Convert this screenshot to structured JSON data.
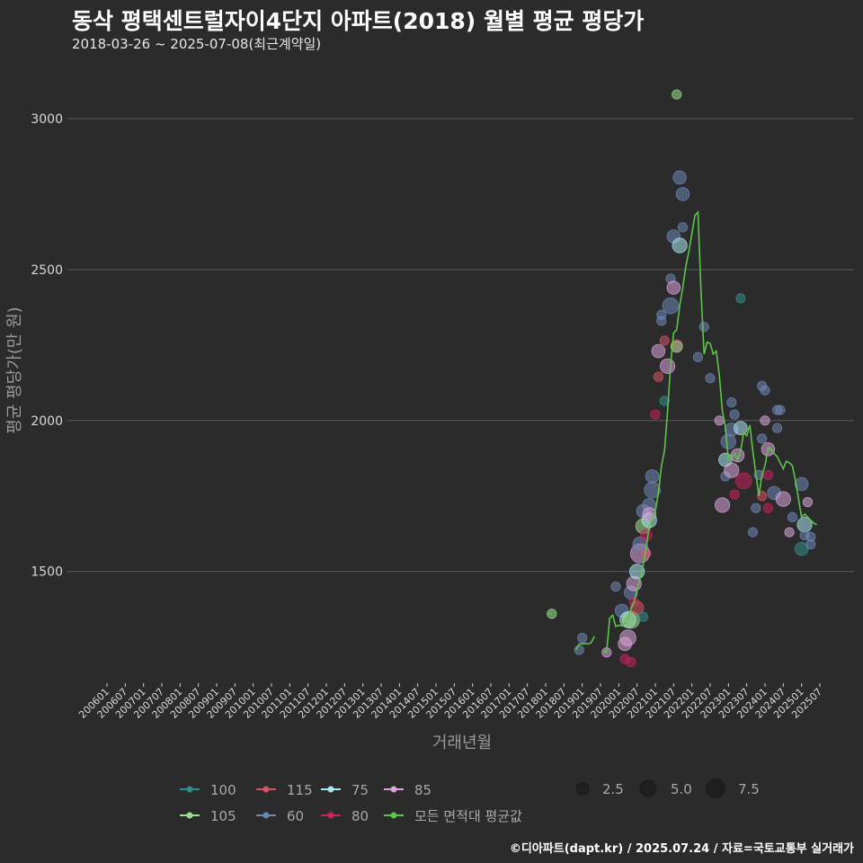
{
  "title": "동삭 평택센트럴자이4단지 아파트(2018) 월별 평균 평당가",
  "subtitle": "2018-03-26 ~ 2025-07-08(최근계약일)",
  "caption": "©디아파트(dapt.kr) / 2025.07.24 / 자료=국토교통부 실거래가",
  "colors": {
    "background": "#2b2b2b",
    "grid": "#5a5a5a",
    "line": "#5cc44a",
    "100": "#2f8f8a",
    "105": "#9be08f",
    "115": "#d4545f",
    "60": "#6f86b6",
    "75": "#a9e6ec",
    "80": "#c9215f",
    "85": "#dba4dc"
  },
  "chart_data": {
    "type": "scatter",
    "title": "동삭 평택센트럴자이4단지 아파트(2018) 월별 평균 평당가",
    "xlabel": "거래년월",
    "ylabel": "평균 평당가(만 원)",
    "x_ticks": [
      "200601",
      "200607",
      "200701",
      "200707",
      "200801",
      "200807",
      "200901",
      "200907",
      "201001",
      "201007",
      "201101",
      "201107",
      "201201",
      "201207",
      "201301",
      "201307",
      "201401",
      "201407",
      "201501",
      "201507",
      "201601",
      "201607",
      "201701",
      "201707",
      "201801",
      "201807",
      "201901",
      "201907",
      "202001",
      "202007",
      "202101",
      "202107",
      "202201",
      "202207",
      "202301",
      "202307",
      "202401",
      "202407",
      "202501",
      "202507"
    ],
    "y_ticks": [
      1500,
      2000,
      2500,
      3000
    ],
    "ylim": [
      1130,
      3110
    ],
    "grid": true,
    "legend": {
      "color_title": "",
      "color_items": [
        {
          "key": "100",
          "label": "100"
        },
        {
          "key": "115",
          "label": "115"
        },
        {
          "key": "75",
          "label": "75"
        },
        {
          "key": "85",
          "label": "85"
        },
        {
          "key": "105",
          "label": "105"
        },
        {
          "key": "60",
          "label": "60"
        },
        {
          "key": "80",
          "label": "80"
        },
        {
          "key": "line",
          "label": "모든 면적대 평균값"
        }
      ],
      "size_items": [
        {
          "label": "2.5",
          "value": 2.5
        },
        {
          "label": "5.0",
          "value": 5.0
        },
        {
          "label": "7.5",
          "value": 7.5
        }
      ]
    },
    "average_line": [
      {
        "x": "201802",
        "y": 1360
      },
      {
        "x": "201803",
        "y": 1360
      },
      {
        "x": "201811",
        "y": 1240
      },
      {
        "x": "201812",
        "y": 1260
      },
      {
        "x": "201901",
        "y": 1260
      },
      {
        "x": "201902",
        "y": 1262
      },
      {
        "x": "201903",
        "y": 1260
      },
      {
        "x": "201904",
        "y": 1265
      },
      {
        "x": "201905",
        "y": 1285
      },
      {
        "x": "201908",
        "y": 1235
      },
      {
        "x": "201909",
        "y": 1232
      },
      {
        "x": "201910",
        "y": 1345
      },
      {
        "x": "201911",
        "y": 1355
      },
      {
        "x": "201912",
        "y": 1318
      },
      {
        "x": "202001",
        "y": 1322
      },
      {
        "x": "202002",
        "y": 1320
      },
      {
        "x": "202003",
        "y": 1328
      },
      {
        "x": "202004",
        "y": 1340
      },
      {
        "x": "202005",
        "y": 1375
      },
      {
        "x": "202006",
        "y": 1400
      },
      {
        "x": "202007",
        "y": 1440
      },
      {
        "x": "202008",
        "y": 1480
      },
      {
        "x": "202009",
        "y": 1520
      },
      {
        "x": "202010",
        "y": 1580
      },
      {
        "x": "202011",
        "y": 1650
      },
      {
        "x": "202012",
        "y": 1670
      },
      {
        "x": "202101",
        "y": 1700
      },
      {
        "x": "202102",
        "y": 1760
      },
      {
        "x": "202103",
        "y": 1850
      },
      {
        "x": "202104",
        "y": 1900
      },
      {
        "x": "202105",
        "y": 2030
      },
      {
        "x": "202106",
        "y": 2180
      },
      {
        "x": "202107",
        "y": 2290
      },
      {
        "x": "202108",
        "y": 2300
      },
      {
        "x": "202109",
        "y": 2380
      },
      {
        "x": "202110",
        "y": 2440
      },
      {
        "x": "202111",
        "y": 2510
      },
      {
        "x": "202112",
        "y": 2560
      },
      {
        "x": "202201",
        "y": 2620
      },
      {
        "x": "202202",
        "y": 2680
      },
      {
        "x": "202203",
        "y": 2690
      },
      {
        "x": "202204",
        "y": 2430
      },
      {
        "x": "202205",
        "y": 2220
      },
      {
        "x": "202206",
        "y": 2260
      },
      {
        "x": "202207",
        "y": 2255
      },
      {
        "x": "202208",
        "y": 2220
      },
      {
        "x": "202209",
        "y": 2230
      },
      {
        "x": "202210",
        "y": 2150
      },
      {
        "x": "202211",
        "y": 2030
      },
      {
        "x": "202212",
        "y": 1980
      },
      {
        "x": "202301",
        "y": 1870
      },
      {
        "x": "202302",
        "y": 1880
      },
      {
        "x": "202303",
        "y": 1890
      },
      {
        "x": "202304",
        "y": 1870
      },
      {
        "x": "202305",
        "y": 1900
      },
      {
        "x": "202306",
        "y": 1960
      },
      {
        "x": "202307",
        "y": 1950
      },
      {
        "x": "202308",
        "y": 1985
      },
      {
        "x": "202309",
        "y": 1900
      },
      {
        "x": "202310",
        "y": 1825
      },
      {
        "x": "202311",
        "y": 1750
      },
      {
        "x": "202312",
        "y": 1820
      },
      {
        "x": "202401",
        "y": 1850
      },
      {
        "x": "202402",
        "y": 1910
      },
      {
        "x": "202403",
        "y": 1905
      },
      {
        "x": "202404",
        "y": 1890
      },
      {
        "x": "202405",
        "y": 1880
      },
      {
        "x": "202406",
        "y": 1860
      },
      {
        "x": "202407",
        "y": 1840
      },
      {
        "x": "202408",
        "y": 1865
      },
      {
        "x": "202409",
        "y": 1860
      },
      {
        "x": "202410",
        "y": 1850
      },
      {
        "x": "202411",
        "y": 1800
      },
      {
        "x": "202412",
        "y": 1740
      },
      {
        "x": "202501",
        "y": 1680
      },
      {
        "x": "202502",
        "y": 1690
      },
      {
        "x": "202503",
        "y": 1680
      },
      {
        "x": "202504",
        "y": 1670
      },
      {
        "x": "202505",
        "y": 1660
      },
      {
        "x": "202506",
        "y": 1655
      }
    ],
    "points": [
      {
        "x": "201803",
        "y": 1360,
        "area": "105",
        "n": 1
      },
      {
        "x": "201812",
        "y": 1240,
        "area": "60",
        "n": 1
      },
      {
        "x": "201901",
        "y": 1280,
        "area": "60",
        "n": 1
      },
      {
        "x": "201909",
        "y": 1232,
        "area": "85",
        "n": 1
      },
      {
        "x": "201912",
        "y": 1450,
        "area": "60",
        "n": 1
      },
      {
        "x": "202002",
        "y": 1370,
        "area": "60",
        "n": 3
      },
      {
        "x": "202003",
        "y": 1210,
        "area": "80",
        "n": 1
      },
      {
        "x": "202003",
        "y": 1260,
        "area": "85",
        "n": 3
      },
      {
        "x": "202004",
        "y": 1340,
        "area": "75",
        "n": 5
      },
      {
        "x": "202004",
        "y": 1280,
        "area": "85",
        "n": 5
      },
      {
        "x": "202005",
        "y": 1200,
        "area": "80",
        "n": 1
      },
      {
        "x": "202005",
        "y": 1430,
        "area": "60",
        "n": 3
      },
      {
        "x": "202005",
        "y": 1340,
        "area": "105",
        "n": 6
      },
      {
        "x": "202006",
        "y": 1460,
        "area": "85",
        "n": 4
      },
      {
        "x": "202006",
        "y": 1400,
        "area": "80",
        "n": 1
      },
      {
        "x": "202007",
        "y": 1500,
        "area": "75",
        "n": 4
      },
      {
        "x": "202007",
        "y": 1380,
        "area": "115",
        "n": 3
      },
      {
        "x": "202008",
        "y": 1560,
        "area": "85",
        "n": 8
      },
      {
        "x": "202008",
        "y": 1590,
        "area": "60",
        "n": 4
      },
      {
        "x": "202009",
        "y": 1350,
        "area": "100",
        "n": 1
      },
      {
        "x": "202009",
        "y": 1650,
        "area": "105",
        "n": 4
      },
      {
        "x": "202009",
        "y": 1700,
        "area": "60",
        "n": 3
      },
      {
        "x": "202010",
        "y": 1620,
        "area": "80",
        "n": 2
      },
      {
        "x": "202010",
        "y": 1560,
        "area": "115",
        "n": 1
      },
      {
        "x": "202011",
        "y": 1670,
        "area": "75",
        "n": 4
      },
      {
        "x": "202011",
        "y": 1720,
        "area": "60",
        "n": 3
      },
      {
        "x": "202011",
        "y": 1690,
        "area": "85",
        "n": 3
      },
      {
        "x": "202012",
        "y": 1770,
        "area": "60",
        "n": 5
      },
      {
        "x": "202012",
        "y": 1815,
        "area": "60",
        "n": 3
      },
      {
        "x": "202101",
        "y": 2020,
        "area": "80",
        "n": 1
      },
      {
        "x": "202102",
        "y": 2230,
        "area": "85",
        "n": 3
      },
      {
        "x": "202102",
        "y": 2145,
        "area": "115",
        "n": 1
      },
      {
        "x": "202103",
        "y": 2350,
        "area": "60",
        "n": 1
      },
      {
        "x": "202103",
        "y": 2330,
        "area": "60",
        "n": 1
      },
      {
        "x": "202104",
        "y": 2265,
        "area": "115",
        "n": 1
      },
      {
        "x": "202104",
        "y": 2065,
        "area": "100",
        "n": 1
      },
      {
        "x": "202105",
        "y": 2180,
        "area": "85",
        "n": 4
      },
      {
        "x": "202106",
        "y": 2380,
        "area": "60",
        "n": 5
      },
      {
        "x": "202106",
        "y": 2470,
        "area": "60",
        "n": 1
      },
      {
        "x": "202107",
        "y": 2440,
        "area": "85",
        "n": 3
      },
      {
        "x": "202107",
        "y": 2610,
        "area": "60",
        "n": 3
      },
      {
        "x": "202108",
        "y": 2250,
        "area": "80",
        "n": 2
      },
      {
        "x": "202108",
        "y": 2245,
        "area": "105",
        "n": 2
      },
      {
        "x": "202108",
        "y": 3080,
        "area": "105",
        "n": 1
      },
      {
        "x": "202109",
        "y": 2580,
        "area": "75",
        "n": 4
      },
      {
        "x": "202109",
        "y": 2805,
        "area": "60",
        "n": 3
      },
      {
        "x": "202110",
        "y": 2750,
        "area": "60",
        "n": 3
      },
      {
        "x": "202110",
        "y": 2640,
        "area": "60",
        "n": 1
      },
      {
        "x": "202203",
        "y": 2210,
        "area": "60",
        "n": 1
      },
      {
        "x": "202205",
        "y": 2310,
        "area": "60",
        "n": 1
      },
      {
        "x": "202207",
        "y": 2140,
        "area": "60",
        "n": 1
      },
      {
        "x": "202210",
        "y": 2000,
        "area": "85",
        "n": 1
      },
      {
        "x": "202211",
        "y": 1720,
        "area": "85",
        "n": 4
      },
      {
        "x": "202212",
        "y": 1870,
        "area": "75",
        "n": 3
      },
      {
        "x": "202212",
        "y": 1815,
        "area": "60",
        "n": 1
      },
      {
        "x": "202301",
        "y": 1930,
        "area": "60",
        "n": 4
      },
      {
        "x": "202302",
        "y": 1835,
        "area": "85",
        "n": 4
      },
      {
        "x": "202302",
        "y": 1970,
        "area": "60",
        "n": 3
      },
      {
        "x": "202302",
        "y": 2060,
        "area": "60",
        "n": 1
      },
      {
        "x": "202303",
        "y": 1755,
        "area": "80",
        "n": 1
      },
      {
        "x": "202303",
        "y": 2020,
        "area": "60",
        "n": 1
      },
      {
        "x": "202304",
        "y": 1885,
        "area": "85",
        "n": 3
      },
      {
        "x": "202305",
        "y": 2405,
        "area": "100",
        "n": 1
      },
      {
        "x": "202305",
        "y": 1975,
        "area": "75",
        "n": 3
      },
      {
        "x": "202306",
        "y": 1800,
        "area": "80",
        "n": 5
      },
      {
        "x": "202309",
        "y": 1630,
        "area": "60",
        "n": 1
      },
      {
        "x": "202310",
        "y": 1710,
        "area": "60",
        "n": 1
      },
      {
        "x": "202311",
        "y": 1820,
        "area": "60",
        "n": 1
      },
      {
        "x": "202312",
        "y": 2115,
        "area": "60",
        "n": 1
      },
      {
        "x": "202312",
        "y": 1940,
        "area": "60",
        "n": 1
      },
      {
        "x": "202312",
        "y": 1750,
        "area": "115",
        "n": 1
      },
      {
        "x": "202401",
        "y": 2100,
        "area": "60",
        "n": 1
      },
      {
        "x": "202401",
        "y": 2000,
        "area": "85",
        "n": 1
      },
      {
        "x": "202402",
        "y": 1905,
        "area": "85",
        "n": 3
      },
      {
        "x": "202402",
        "y": 1710,
        "area": "80",
        "n": 1
      },
      {
        "x": "202402",
        "y": 1820,
        "area": "80",
        "n": 1
      },
      {
        "x": "202404",
        "y": 1760,
        "area": "60",
        "n": 3
      },
      {
        "x": "202405",
        "y": 2035,
        "area": "60",
        "n": 1
      },
      {
        "x": "202405",
        "y": 1975,
        "area": "60",
        "n": 1
      },
      {
        "x": "202406",
        "y": 2035,
        "area": "60",
        "n": 1
      },
      {
        "x": "202407",
        "y": 1740,
        "area": "85",
        "n": 4
      },
      {
        "x": "202409",
        "y": 1630,
        "area": "85",
        "n": 1
      },
      {
        "x": "202410",
        "y": 1680,
        "area": "60",
        "n": 1
      },
      {
        "x": "202501",
        "y": 1790,
        "area": "60",
        "n": 3
      },
      {
        "x": "202501",
        "y": 1575,
        "area": "100",
        "n": 3
      },
      {
        "x": "202502",
        "y": 1655,
        "area": "75",
        "n": 4
      },
      {
        "x": "202502",
        "y": 1620,
        "area": "60",
        "n": 1
      },
      {
        "x": "202503",
        "y": 1730,
        "area": "85",
        "n": 1
      },
      {
        "x": "202504",
        "y": 1590,
        "area": "60",
        "n": 1
      },
      {
        "x": "202504",
        "y": 1615,
        "area": "60",
        "n": 1
      }
    ]
  }
}
